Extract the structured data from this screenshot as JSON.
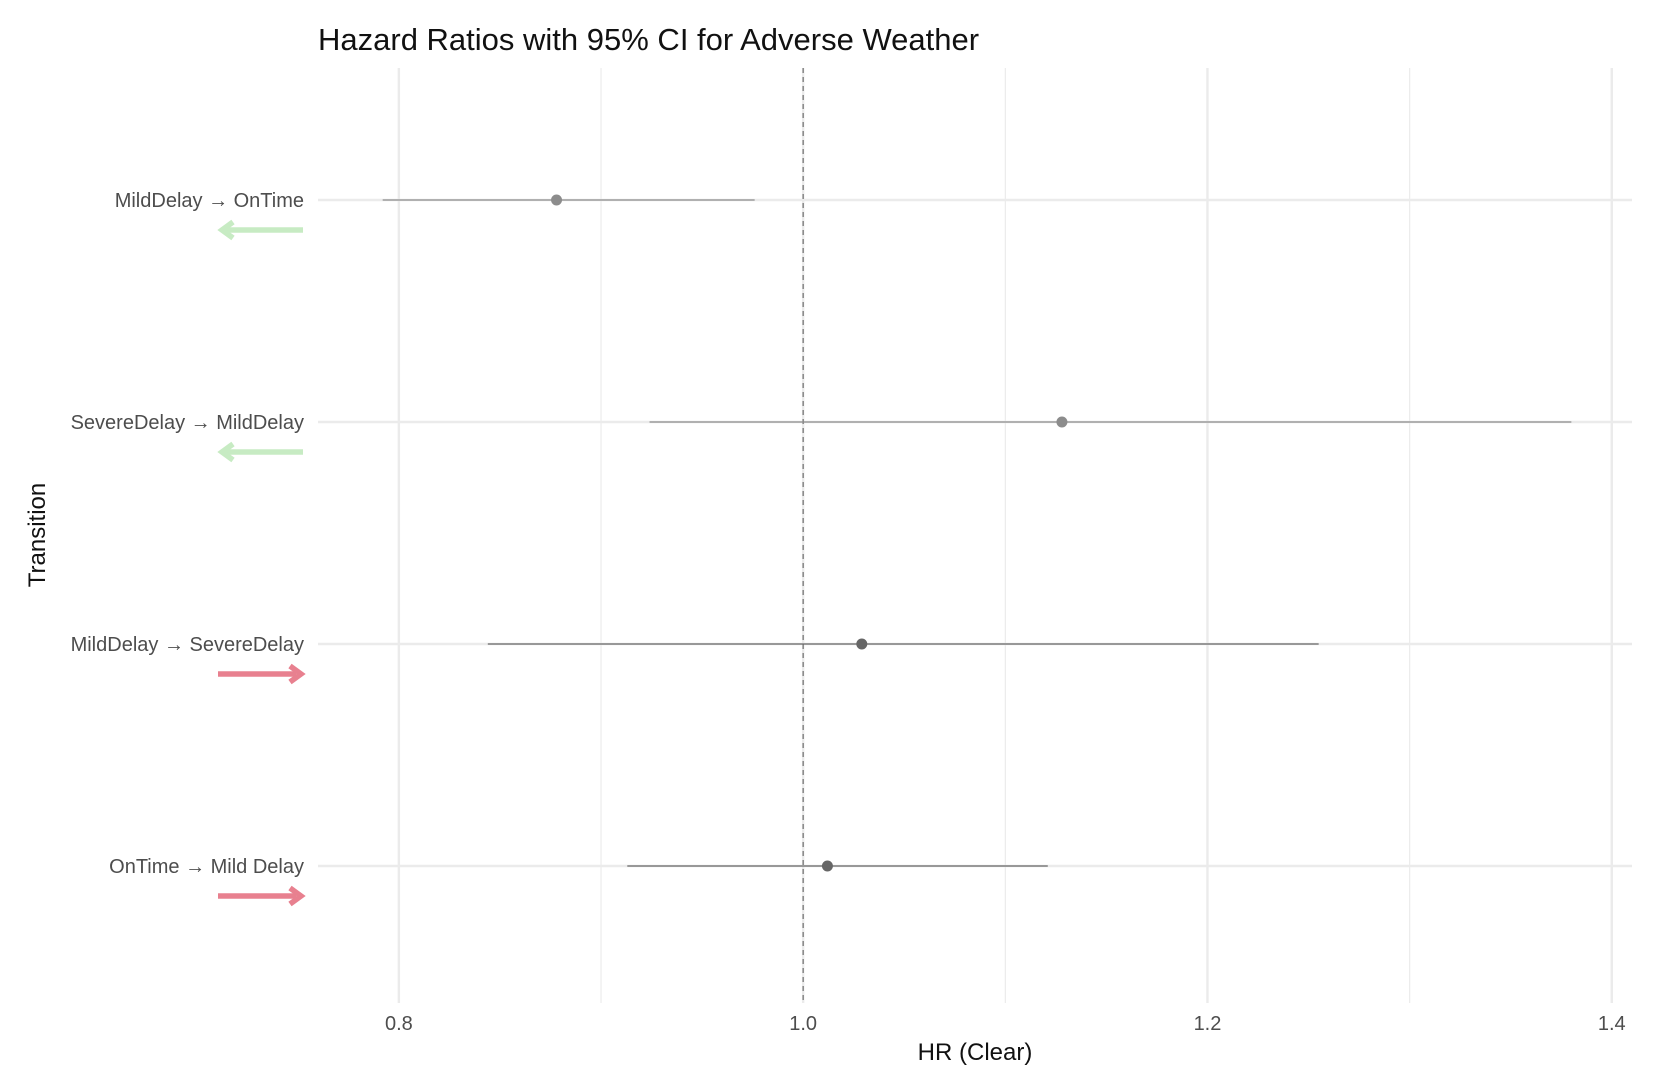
{
  "chart_data": {
    "type": "forest",
    "title": "Hazard Ratios with 95% CI for Adverse Weather",
    "xlabel": "HR (Clear)",
    "ylabel": "Transition",
    "xlim": [
      0.76,
      1.41
    ],
    "x_ticks": [
      0.8,
      1.0,
      1.2,
      1.4
    ],
    "x_tick_labels": [
      "0.8",
      "1.0",
      "1.2",
      "1.4"
    ],
    "reference_line": 1.0,
    "grid": true,
    "rows": [
      {
        "label": "MildDelay → OnTime",
        "hr": 0.878,
        "lower": 0.792,
        "upper": 0.976,
        "direction": "left",
        "point_color": "#8c8c8c"
      },
      {
        "label": "SevereDelay → MildDelay",
        "hr": 1.128,
        "lower": 0.924,
        "upper": 1.38,
        "direction": "left",
        "point_color": "#8c8c8c"
      },
      {
        "label": "MildDelay → SevereDelay",
        "hr": 1.029,
        "lower": 0.844,
        "upper": 1.255,
        "direction": "right",
        "point_color": "#666666"
      },
      {
        "label": "OnTime → Mild Delay",
        "hr": 1.012,
        "lower": 0.913,
        "upper": 1.121,
        "direction": "right",
        "point_color": "#666666"
      }
    ],
    "colors": {
      "arrow_left": "#c7ebc3",
      "arrow_right": "#e8808f",
      "grid": "#ebebeb",
      "ref_line": "#7f7f7f"
    }
  }
}
